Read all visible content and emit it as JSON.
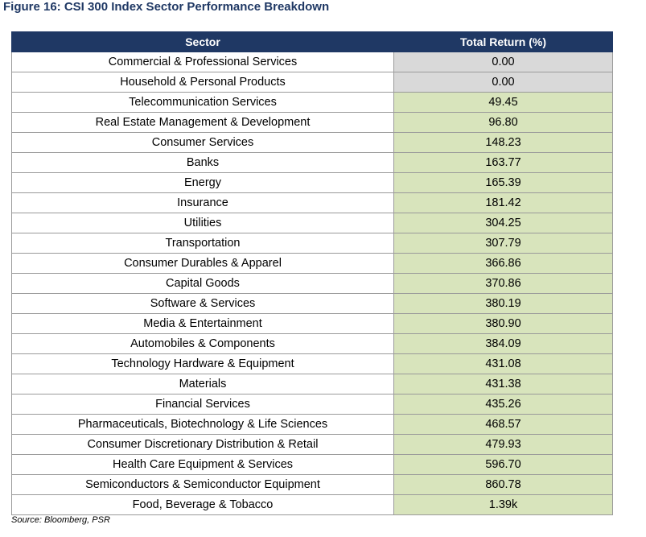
{
  "figure": {
    "title": "Figure 16: CSI 300 Index Sector Performance Breakdown",
    "source": "Source: Bloomberg, PSR"
  },
  "table": {
    "headers": [
      "Sector",
      "Total Return (%)"
    ],
    "cell_colors": {
      "zero": "#d9d9d9",
      "positive": "#d8e4bc",
      "header": "#1f3864"
    },
    "rows": [
      {
        "sector": "Commercial & Professional Services",
        "total_return": "0.00"
      },
      {
        "sector": "Household & Personal Products",
        "total_return": "0.00"
      },
      {
        "sector": "Telecommunication Services",
        "total_return": "49.45"
      },
      {
        "sector": "Real Estate Management & Development",
        "total_return": "96.80"
      },
      {
        "sector": "Consumer Services",
        "total_return": "148.23"
      },
      {
        "sector": "Banks",
        "total_return": "163.77"
      },
      {
        "sector": "Energy",
        "total_return": "165.39"
      },
      {
        "sector": "Insurance",
        "total_return": "181.42"
      },
      {
        "sector": "Utilities",
        "total_return": "304.25"
      },
      {
        "sector": "Transportation",
        "total_return": "307.79"
      },
      {
        "sector": "Consumer Durables & Apparel",
        "total_return": "366.86"
      },
      {
        "sector": "Capital Goods",
        "total_return": "370.86"
      },
      {
        "sector": "Software & Services",
        "total_return": "380.19"
      },
      {
        "sector": "Media & Entertainment",
        "total_return": "380.90"
      },
      {
        "sector": "Automobiles & Components",
        "total_return": "384.09"
      },
      {
        "sector": "Technology Hardware & Equipment",
        "total_return": "431.08"
      },
      {
        "sector": "Materials",
        "total_return": "431.38"
      },
      {
        "sector": "Financial Services",
        "total_return": "435.26"
      },
      {
        "sector": "Pharmaceuticals, Biotechnology & Life Sciences",
        "total_return": "468.57"
      },
      {
        "sector": "Consumer Discretionary Distribution & Retail",
        "total_return": "479.93"
      },
      {
        "sector": "Health Care Equipment & Services",
        "total_return": "596.70"
      },
      {
        "sector": "Semiconductors & Semiconductor Equipment",
        "total_return": "860.78"
      },
      {
        "sector": "Food, Beverage & Tobacco",
        "total_return": "1.39k"
      }
    ]
  }
}
